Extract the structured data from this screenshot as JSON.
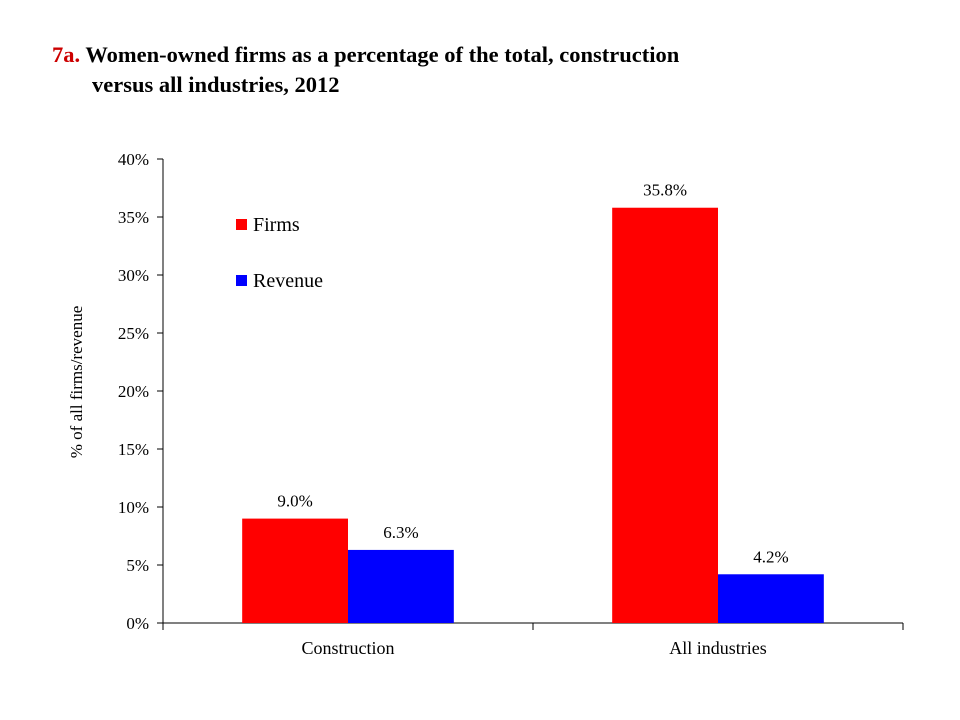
{
  "header": {
    "number": "7a.",
    "title_line1": "Women-owned firms as a percentage of the total, construction",
    "title_line2": "versus all industries, 2012"
  },
  "chart_data": {
    "type": "bar",
    "title": "Women-owned firms as a percentage of the total, construction versus all industries, 2012",
    "categories": [
      "Construction",
      "All industries"
    ],
    "series": [
      {
        "name": "Firms",
        "color": "#ff0000",
        "values": [
          9.0,
          35.8
        ],
        "labels": [
          "9.0%",
          "35.8%"
        ]
      },
      {
        "name": "Revenue",
        "color": "#0000ff",
        "values": [
          6.3,
          4.2
        ],
        "labels": [
          "6.3%",
          "4.2%"
        ]
      }
    ],
    "ylabel": "% of all firms/revenue",
    "xlabel": "",
    "ylim": [
      0,
      40
    ],
    "yticks": [
      {
        "value": 0,
        "label": "0%"
      },
      {
        "value": 5,
        "label": "5%"
      },
      {
        "value": 10,
        "label": "10%"
      },
      {
        "value": 15,
        "label": "15%"
      },
      {
        "value": 20,
        "label": "20%"
      },
      {
        "value": 25,
        "label": "25%"
      },
      {
        "value": 30,
        "label": "30%"
      },
      {
        "value": 35,
        "label": "35%"
      },
      {
        "value": 40,
        "label": "40%"
      }
    ],
    "grid": false,
    "legend_position": "top-left"
  }
}
